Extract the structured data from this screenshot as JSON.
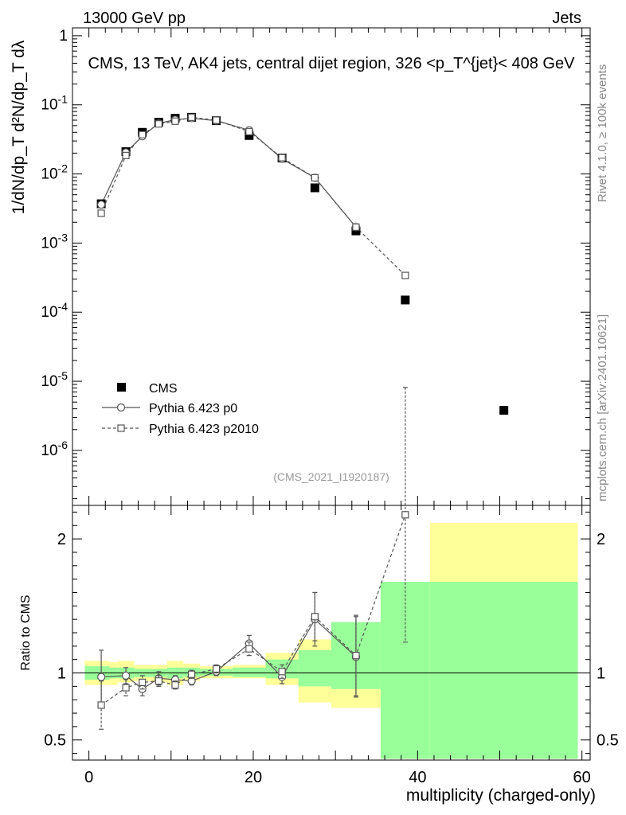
{
  "header": {
    "left": "13000 GeV pp",
    "right": "Jets"
  },
  "side_text": {
    "rivet": "Rivet 4.1.0, ≥ 100k events",
    "mcplots": "mcplots.cern.ch [arXiv:2401.10621]"
  },
  "chart_data": [
    {
      "type": "scatter",
      "panel": "main",
      "title": "CMS, 13 TeV, AK4 jets, central dijet region, 326 <p_T^{jet}< 408 GeV",
      "ylabel": "1/dN/dp_T  d²N/dp_T dλ",
      "yscale": "log",
      "xlim": [
        -2,
        61
      ],
      "ylim": [
        1.6e-07,
        1.3
      ],
      "y_tick_labels": [
        "10^-6",
        "10^-5",
        "10^-4",
        "10^-3",
        "10^-2",
        "10^-1",
        "1"
      ],
      "analysis_label": "(CMS_2021_I1920187)",
      "legend": [
        "CMS",
        "Pythia 6.423 p0",
        "Pythia 6.423 p2010"
      ],
      "series": [
        {
          "name": "CMS",
          "marker": "filled-square",
          "x": [
            1.5,
            4.5,
            6.5,
            8.5,
            10.5,
            12.5,
            15.5,
            19.5,
            23.5,
            27.5,
            32.5,
            38.5,
            50.5
          ],
          "y": [
            0.0037,
            0.021,
            0.04,
            0.056,
            0.064,
            0.066,
            0.059,
            0.036,
            0.017,
            0.0063,
            0.0015,
            0.00015,
            3.8e-06
          ]
        },
        {
          "name": "Pythia 6.423 p0",
          "marker": "open-circle",
          "x": [
            1.5,
            4.5,
            6.5,
            8.5,
            10.5,
            12.5,
            15.5,
            19.5,
            23.5,
            27.5,
            32.5
          ],
          "y": [
            0.0036,
            0.0205,
            0.035,
            0.054,
            0.061,
            0.064,
            0.059,
            0.043,
            0.0165,
            0.0088,
            0.0017
          ]
        },
        {
          "name": "Pythia 6.423 p2010",
          "marker": "open-square",
          "x": [
            1.5,
            4.5,
            6.5,
            8.5,
            10.5,
            12.5,
            15.5,
            19.5,
            23.5,
            27.5,
            32.5,
            38.5
          ],
          "y": [
            0.0027,
            0.0185,
            0.037,
            0.053,
            0.058,
            0.066,
            0.06,
            0.041,
            0.0172,
            0.0088,
            0.0017,
            0.00034
          ]
        }
      ]
    },
    {
      "type": "scatter",
      "panel": "ratio",
      "ylabel": "Ratio to CMS",
      "xlabel": "multiplicity (charged-only)",
      "xlim": [
        -2,
        61
      ],
      "ylim": [
        0.35,
        2.25
      ],
      "x_ticks": [
        0,
        20,
        40,
        60
      ],
      "y_ticks": [
        0.5,
        1,
        2
      ],
      "bands": {
        "edges": [
          -0.5,
          2.5,
          3.5,
          5.5,
          7.5,
          9.5,
          11.5,
          13.5,
          17.5,
          21.5,
          25.5,
          29.5,
          35.5,
          41.5,
          59.5
        ],
        "green_lo": [
          0.95,
          0.96,
          0.96,
          0.97,
          0.97,
          0.96,
          0.97,
          0.98,
          0.97,
          0.96,
          0.9,
          0.88,
          0.36,
          0.36
        ],
        "green_hi": [
          1.05,
          1.04,
          1.04,
          1.03,
          1.03,
          1.04,
          1.04,
          1.03,
          1.04,
          1.1,
          1.17,
          1.38,
          1.68,
          1.68
        ],
        "yellow_lo": [
          0.91,
          0.91,
          0.93,
          0.94,
          0.93,
          0.91,
          0.94,
          0.96,
          0.96,
          0.91,
          0.78,
          0.74,
          0.36,
          0.36
        ],
        "yellow_hi": [
          1.09,
          1.08,
          1.09,
          1.06,
          1.06,
          1.09,
          1.07,
          1.05,
          1.06,
          1.15,
          1.25,
          1.36,
          1.68,
          2.12
        ]
      },
      "series": [
        {
          "name": "Pythia 6.423 p0",
          "marker": "open-circle",
          "x": [
            1.5,
            4.5,
            6.5,
            8.5,
            10.5,
            12.5,
            15.5,
            19.5,
            23.5,
            27.5,
            32.5
          ],
          "y": [
            0.97,
            0.98,
            0.88,
            0.96,
            0.95,
            0.94,
            1.01,
            1.22,
            0.97,
            1.4,
            1.12
          ],
          "err": [
            0.2,
            0.06,
            0.05,
            0.05,
            0.03,
            0.03,
            0.03,
            0.06,
            0.05,
            0.2,
            0.3
          ]
        },
        {
          "name": "Pythia 6.423 p2010",
          "marker": "open-square",
          "x": [
            1.5,
            4.5,
            6.5,
            8.5,
            10.5,
            12.5,
            15.5,
            19.5,
            23.5,
            27.5,
            32.5,
            38.5
          ],
          "y": [
            0.76,
            0.89,
            0.93,
            0.94,
            0.91,
            0.99,
            1.03,
            1.18,
            1.01,
            1.42,
            1.13,
            2.18
          ],
          "err": [
            0.18,
            0.06,
            0.05,
            0.04,
            0.03,
            0.03,
            0.03,
            0.05,
            0.05,
            0.18,
            0.3,
            0.95
          ]
        }
      ]
    }
  ]
}
